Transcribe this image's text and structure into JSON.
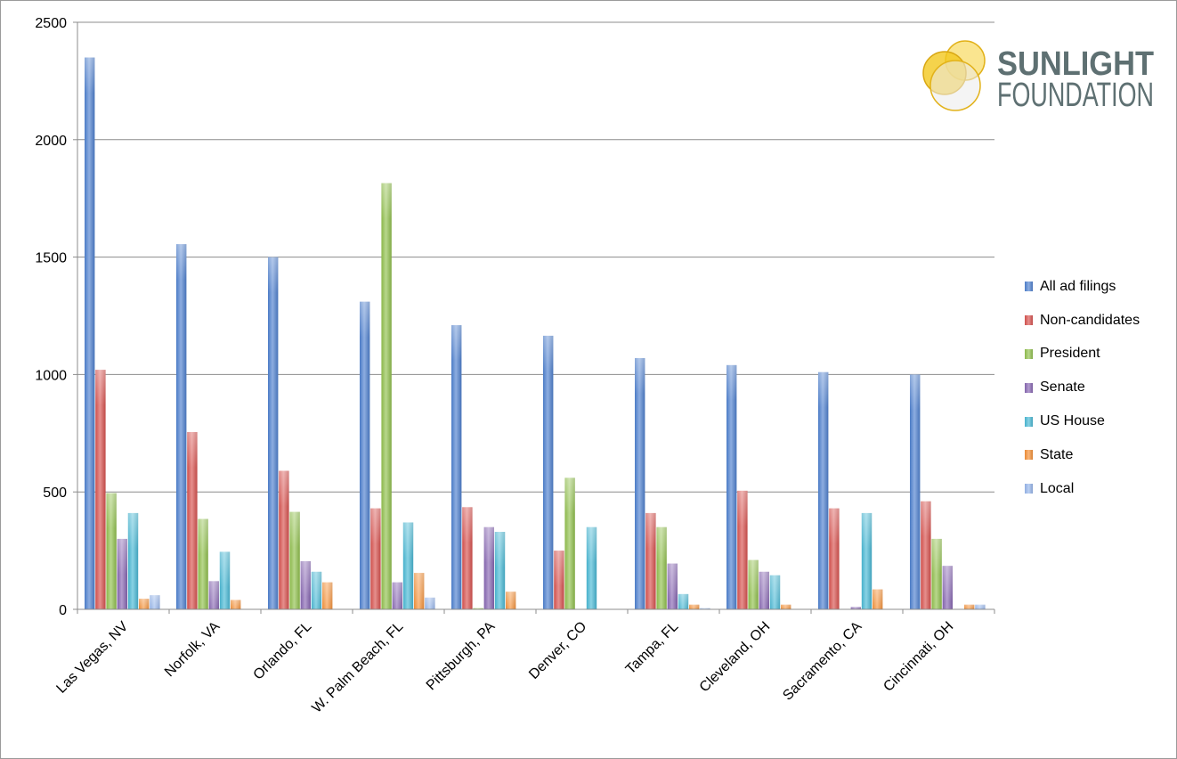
{
  "logo": {
    "line1": "SUNLIGHT",
    "line2": "FOUNDATION"
  },
  "chart_data": {
    "type": "bar",
    "title": "",
    "xlabel": "",
    "ylabel": "",
    "ylim": [
      0,
      2500
    ],
    "yticks": [
      0,
      500,
      1000,
      1500,
      2000,
      2500
    ],
    "grid": true,
    "legend_position": "right",
    "categories": [
      "Las Vegas, NV",
      "Norfolk, VA",
      "Orlando, FL",
      "W. Palm Beach, FL",
      "Pittsburgh, PA",
      "Denver, CO",
      "Tampa, FL",
      "Cleveland, OH",
      "Sacramento, CA",
      "Cincinnati, OH"
    ],
    "series": [
      {
        "name": "All ad filings",
        "color": "#4f81d0",
        "values": [
          2350,
          1555,
          1500,
          1310,
          1210,
          1165,
          1070,
          1040,
          1010,
          1000
        ]
      },
      {
        "name": "Non-candidates",
        "color": "#d9534f",
        "values": [
          1020,
          755,
          590,
          430,
          435,
          250,
          410,
          505,
          430,
          460
        ]
      },
      {
        "name": "President",
        "color": "#92c14e",
        "values": [
          495,
          385,
          415,
          1815,
          5,
          560,
          350,
          210,
          0,
          300
        ]
      },
      {
        "name": "Senate",
        "color": "#8867b3",
        "values": [
          300,
          120,
          205,
          115,
          350,
          0,
          195,
          160,
          10,
          185
        ]
      },
      {
        "name": "US House",
        "color": "#4ab9d6",
        "values": [
          410,
          245,
          160,
          370,
          330,
          350,
          65,
          145,
          410,
          0
        ]
      },
      {
        "name": "State",
        "color": "#f59036",
        "values": [
          45,
          40,
          115,
          155,
          75,
          0,
          20,
          20,
          85,
          20
        ]
      },
      {
        "name": "Local",
        "color": "#97b6ec",
        "values": [
          60,
          0,
          0,
          50,
          0,
          0,
          5,
          0,
          0,
          20
        ]
      }
    ]
  }
}
